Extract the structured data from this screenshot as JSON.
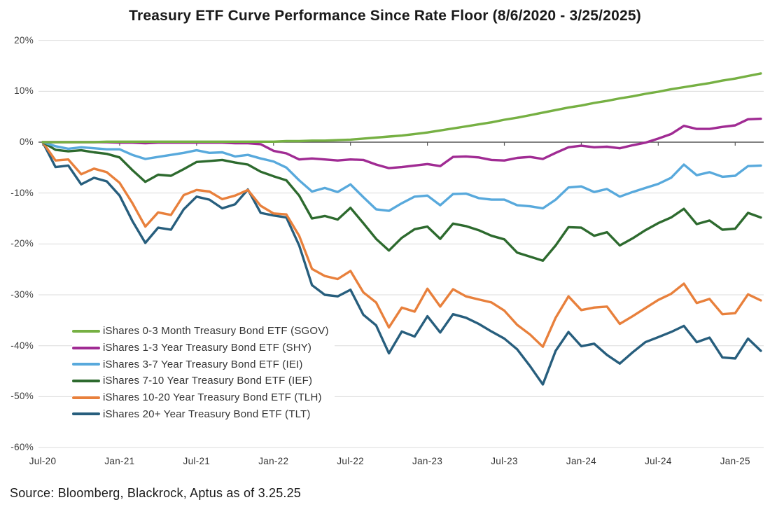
{
  "title": "Treasury ETF Curve Performance Since Rate Floor (8/6/2020 - 3/25/2025)",
  "source": {
    "text": "Source: Bloomberg, Blackrock, Aptus as of 3.25.25"
  },
  "colors": {
    "grid": "#dcdcdc",
    "zero_axis": "#595959",
    "sgov_green": "#76b043",
    "shy_purple": "#a02b93",
    "iei_light_blue": "#58a9dc",
    "ief_dark_green": "#2d6a2e",
    "tlh_orange": "#e8803c",
    "tlt_navy": "#275e7d"
  },
  "chart_data": {
    "type": "line",
    "title": "Treasury ETF Curve Performance Since Rate Floor (8/6/2020 - 3/25/2025)",
    "xlabel": "",
    "ylabel": "",
    "ylim": [
      -60,
      20
    ],
    "grid": "horizontal only",
    "legend_position": "inside lower-left",
    "y_tick_labels": [
      "20%",
      "10%",
      "0%",
      "-10%",
      "-20%",
      "-30%",
      "-40%",
      "-50%",
      "-60%"
    ],
    "y_tick_values": [
      20,
      10,
      0,
      -10,
      -20,
      -30,
      -40,
      -50,
      -60
    ],
    "x_tick_labels": [
      "Jul-20",
      "Jan-21",
      "Jul-21",
      "Jan-22",
      "Jul-22",
      "Jan-23",
      "Jul-23",
      "Jan-24",
      "Jul-24",
      "Jan-25"
    ],
    "x_frequency": "monthly points from 8/6/2020 start through Mar-2025, cumulative return %",
    "series": [
      {
        "name": "iShares 0-3 Month Treasury Bond ETF (SGOV)",
        "ticker": "SGOV",
        "color": "#76b043",
        "values": [
          0.0,
          0.0,
          0.0,
          0.0,
          0.0,
          0.1,
          0.1,
          0.1,
          0.1,
          0.1,
          0.1,
          0.1,
          0.1,
          0.1,
          0.1,
          0.1,
          0.1,
          0.1,
          0.1,
          0.2,
          0.2,
          0.3,
          0.3,
          0.4,
          0.5,
          0.7,
          0.9,
          1.1,
          1.3,
          1.6,
          1.9,
          2.3,
          2.7,
          3.1,
          3.5,
          3.9,
          4.4,
          4.8,
          5.3,
          5.8,
          6.3,
          6.8,
          7.2,
          7.7,
          8.1,
          8.6,
          9.0,
          9.5,
          9.9,
          10.4,
          10.8,
          11.2,
          11.6,
          12.1,
          12.5,
          13.0,
          13.5
        ]
      },
      {
        "name": "iShares 1-3 Year Treasury Bond ETF (SHY)",
        "ticker": "SHY",
        "color": "#a02b93",
        "values": [
          0.0,
          0.0,
          0.0,
          0.0,
          0.0,
          0.0,
          -0.1,
          -0.1,
          -0.2,
          -0.1,
          -0.1,
          -0.1,
          -0.1,
          -0.1,
          -0.1,
          -0.2,
          -0.2,
          -0.4,
          -1.7,
          -2.2,
          -3.4,
          -3.2,
          -3.4,
          -3.6,
          -3.4,
          -3.5,
          -4.4,
          -5.1,
          -4.9,
          -4.6,
          -4.3,
          -4.7,
          -2.9,
          -2.8,
          -3.0,
          -3.5,
          -3.6,
          -3.1,
          -2.9,
          -3.3,
          -2.1,
          -1.0,
          -0.7,
          -1.0,
          -0.9,
          -1.2,
          -0.6,
          -0.1,
          0.7,
          1.6,
          3.2,
          2.6,
          2.6,
          3.0,
          3.3,
          4.5,
          4.6
        ]
      },
      {
        "name": "iShares 3-7 Year Treasury Bond ETF (IEI)",
        "ticker": "IEI",
        "color": "#58a9dc",
        "values": [
          0.0,
          -0.8,
          -1.3,
          -1.0,
          -1.2,
          -1.4,
          -1.4,
          -2.5,
          -3.3,
          -2.9,
          -2.5,
          -2.1,
          -1.6,
          -2.1,
          -2.0,
          -2.8,
          -2.5,
          -3.2,
          -3.8,
          -5.0,
          -7.5,
          -9.7,
          -9.0,
          -9.8,
          -8.3,
          -10.8,
          -13.2,
          -13.5,
          -12.0,
          -10.7,
          -10.5,
          -12.4,
          -10.2,
          -10.1,
          -11.0,
          -11.3,
          -11.3,
          -12.4,
          -12.6,
          -13.0,
          -11.3,
          -8.9,
          -8.7,
          -9.8,
          -9.2,
          -10.7,
          -9.8,
          -9.0,
          -8.2,
          -7.0,
          -4.4,
          -6.5,
          -5.9,
          -6.8,
          -6.6,
          -4.7,
          -4.6
        ]
      },
      {
        "name": "iShares 7-10 Year Treasury Bond ETF (IEF)",
        "ticker": "IEF",
        "color": "#2d6a2e",
        "values": [
          0.0,
          -1.5,
          -1.8,
          -1.6,
          -2.0,
          -2.3,
          -3.0,
          -5.5,
          -7.8,
          -6.4,
          -6.6,
          -5.3,
          -3.9,
          -3.7,
          -3.5,
          -4.0,
          -4.4,
          -5.8,
          -6.7,
          -7.5,
          -10.5,
          -15.0,
          -14.5,
          -15.2,
          -12.9,
          -15.9,
          -19.0,
          -21.3,
          -18.8,
          -17.1,
          -16.6,
          -19.0,
          -16.0,
          -16.5,
          -17.3,
          -18.4,
          -19.1,
          -21.7,
          -22.5,
          -23.3,
          -20.3,
          -16.7,
          -16.8,
          -18.4,
          -17.7,
          -20.3,
          -18.9,
          -17.3,
          -15.9,
          -14.8,
          -13.1,
          -16.1,
          -15.4,
          -17.2,
          -17.0,
          -13.9,
          -14.8
        ]
      },
      {
        "name": "iShares 10-20 Year Treasury Bond ETF (TLH)",
        "ticker": "TLH",
        "color": "#e8803c",
        "values": [
          0.0,
          -3.6,
          -3.4,
          -6.3,
          -5.2,
          -5.9,
          -8.0,
          -12.0,
          -16.6,
          -13.8,
          -14.3,
          -10.4,
          -9.4,
          -9.7,
          -11.2,
          -10.5,
          -9.4,
          -12.5,
          -14.0,
          -14.2,
          -18.4,
          -24.9,
          -26.3,
          -26.9,
          -25.3,
          -29.5,
          -31.5,
          -36.4,
          -32.5,
          -33.3,
          -28.8,
          -32.3,
          -28.9,
          -30.3,
          -30.9,
          -31.5,
          -33.1,
          -35.9,
          -37.8,
          -40.2,
          -34.5,
          -30.3,
          -33.0,
          -32.5,
          -32.3,
          -35.7,
          -34.2,
          -32.6,
          -31.0,
          -29.8,
          -27.8,
          -31.6,
          -30.8,
          -33.8,
          -33.6,
          -29.9,
          -31.1
        ]
      },
      {
        "name": "iShares 20+ Year Treasury Bond ETF (TLT)",
        "ticker": "TLT",
        "color": "#275e7d",
        "values": [
          0.0,
          -4.9,
          -4.6,
          -8.3,
          -7.0,
          -7.7,
          -10.5,
          -15.5,
          -19.8,
          -16.8,
          -17.2,
          -13.2,
          -10.7,
          -11.3,
          -13.0,
          -12.2,
          -9.3,
          -13.9,
          -14.4,
          -14.8,
          -20.3,
          -28.1,
          -30.0,
          -30.3,
          -29.0,
          -33.9,
          -36.0,
          -41.5,
          -37.2,
          -38.2,
          -34.2,
          -37.4,
          -33.8,
          -34.5,
          -35.7,
          -37.2,
          -38.6,
          -40.7,
          -44.0,
          -47.6,
          -41.0,
          -37.3,
          -40.1,
          -39.6,
          -41.8,
          -43.5,
          -41.3,
          -39.3,
          -38.3,
          -37.3,
          -36.1,
          -39.3,
          -38.4,
          -42.3,
          -42.5,
          -38.6,
          -41.0
        ]
      }
    ]
  }
}
